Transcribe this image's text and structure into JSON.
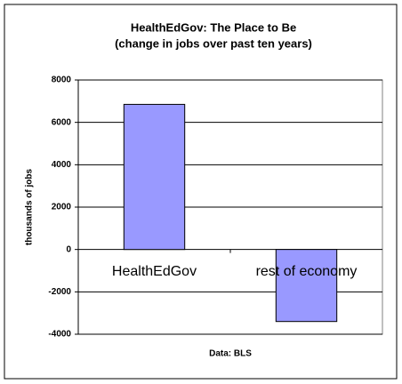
{
  "chart_data": {
    "type": "bar",
    "title": "HealthEdGov: The Place to Be",
    "subtitle": "(change in jobs over past ten years)",
    "y_label": "thousands of jobs",
    "x_label": "Data: BLS",
    "categories": [
      "HealthEdGov",
      "rest of economy"
    ],
    "values": [
      6850,
      -3400
    ],
    "color": "#9999ff",
    "ylim": [
      -4000,
      8000
    ],
    "yticks": [
      -4000,
      -2000,
      0,
      2000,
      4000,
      6000,
      8000
    ],
    "grid": true
  }
}
